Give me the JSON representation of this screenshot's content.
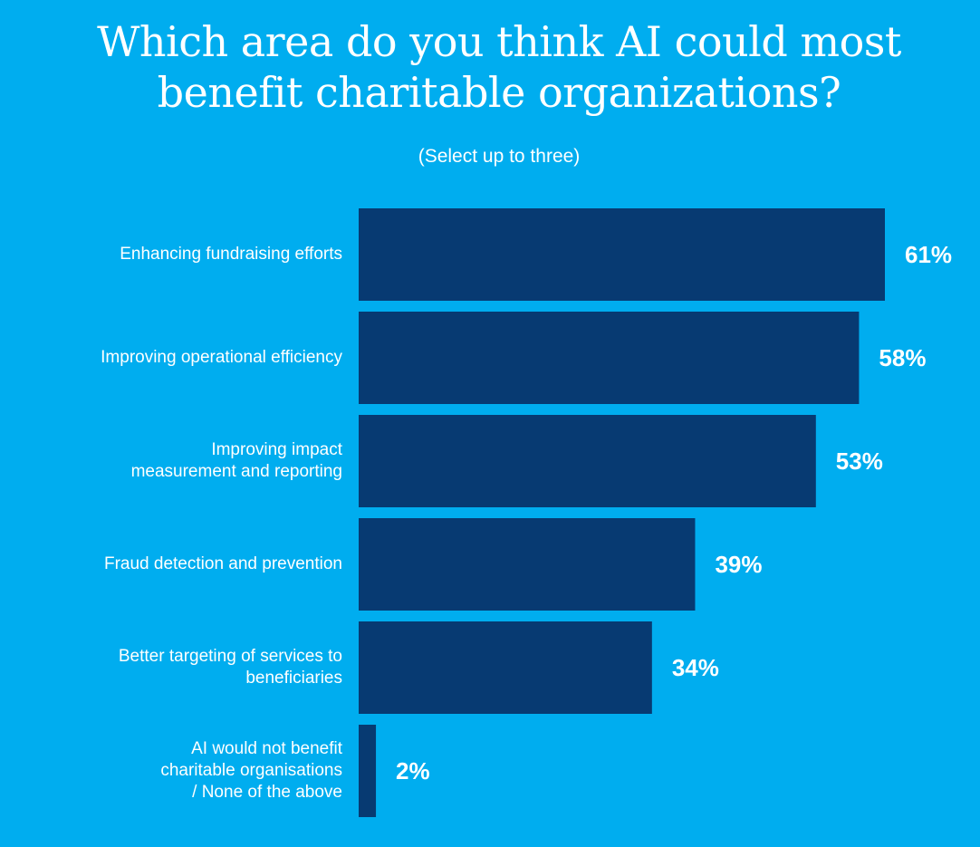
{
  "header": {
    "title_lines": [
      "Which area do you think AI could most",
      "benefit charitable organizations?"
    ],
    "subtitle": "(Select up to three)"
  },
  "colors": {
    "background": "#00adef",
    "bar": "#073a72",
    "text": "#ffffff"
  },
  "chart_data": {
    "type": "bar",
    "orientation": "horizontal",
    "title": "Which area do you think AI could most benefit charitable organizations?",
    "subtitle": "(Select up to three)",
    "categories": [
      [
        "Enhancing fundraising efforts"
      ],
      [
        "Improving operational efficiency"
      ],
      [
        "Improving impact",
        "measurement and reporting"
      ],
      [
        "Fraud detection and prevention"
      ],
      [
        "Better targeting of services to",
        "beneficiaries"
      ],
      [
        "AI would not benefit",
        "charitable organisations",
        "/ None of the above"
      ]
    ],
    "values": [
      61,
      58,
      53,
      39,
      34,
      2
    ],
    "value_labels": [
      "61%",
      "58%",
      "53%",
      "39%",
      "34%",
      "2%"
    ],
    "unit": "%",
    "xlim": [
      0,
      100
    ],
    "grid": false,
    "legend": "none"
  }
}
